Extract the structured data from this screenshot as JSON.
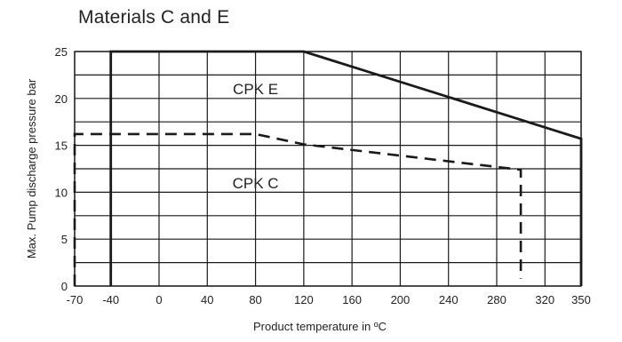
{
  "chart_data": {
    "type": "line",
    "title": "Materials C and E",
    "xlabel": "Product temperature in ºC",
    "ylabel": "Max. Pump discharge pressure bar",
    "x_ticks": [
      "-70",
      "-40",
      "0",
      "40",
      "80",
      "120",
      "160",
      "200",
      "240",
      "280",
      "320",
      "350"
    ],
    "y_ticks": [
      "0",
      "5",
      "10",
      "15",
      "20",
      "25"
    ],
    "xlim": [
      -70,
      350
    ],
    "ylim": [
      0,
      25
    ],
    "grid": true,
    "series": [
      {
        "name": "CPK E",
        "style": "solid",
        "points": [
          [
            -40,
            0
          ],
          [
            -40,
            25
          ],
          [
            120,
            25
          ],
          [
            350,
            15.7
          ],
          [
            350,
            0
          ]
        ]
      },
      {
        "name": "CPK C",
        "style": "dashed",
        "points": [
          [
            -70,
            0
          ],
          [
            -70,
            16.2
          ],
          [
            80,
            16.2
          ],
          [
            120,
            15.1
          ],
          [
            280,
            12.7
          ],
          [
            300,
            12.4
          ],
          [
            300,
            0.8
          ]
        ]
      }
    ],
    "annotations": [
      {
        "text": "CPK E",
        "x": 80,
        "y": 21,
        "series": "CPK E"
      },
      {
        "text": "CPK C",
        "x": 80,
        "y": 11,
        "series": "CPK C"
      }
    ],
    "colors": {
      "line": "#1a1a1a",
      "grid": "#1a1a1a",
      "text": "#222222"
    }
  }
}
